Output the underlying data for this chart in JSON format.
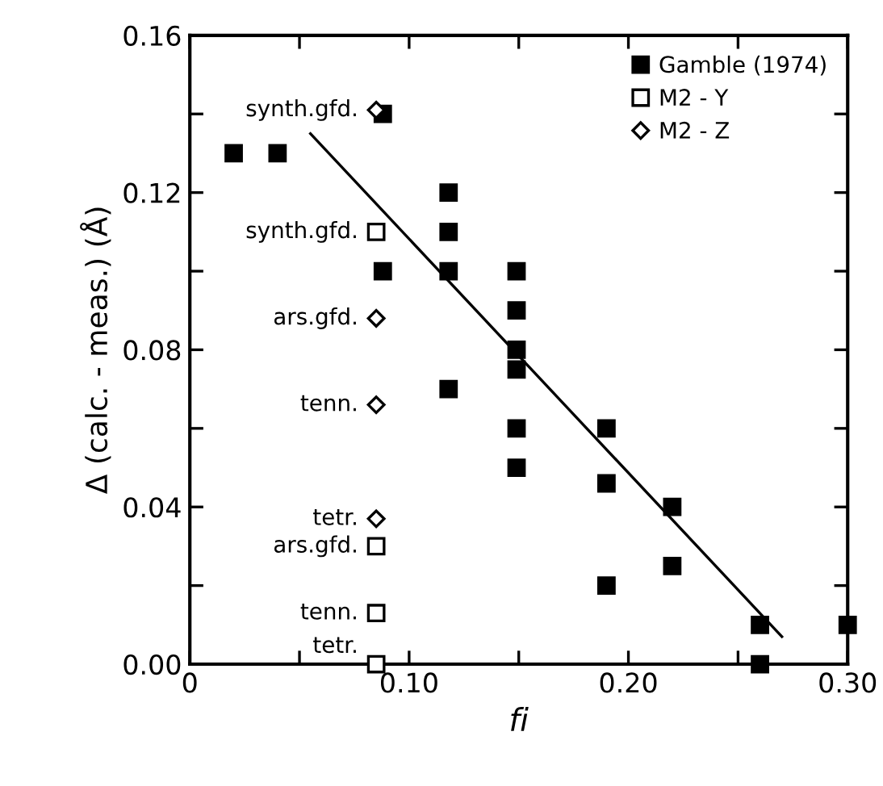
{
  "chart_data": {
    "type": "scatter",
    "xlabel": "fi",
    "ylabel": "Δ (calc. - meas.) (Å)",
    "xlim": [
      0,
      0.3
    ],
    "ylim": [
      0,
      0.16
    ],
    "xticks": [
      {
        "value": 0,
        "label": "0"
      },
      {
        "value": 0.05,
        "label": null
      },
      {
        "value": 0.1,
        "label": "0.10"
      },
      {
        "value": 0.15,
        "label": null
      },
      {
        "value": 0.2,
        "label": "0.20"
      },
      {
        "value": 0.25,
        "label": null
      },
      {
        "value": 0.3,
        "label": "0.30"
      }
    ],
    "yticks": [
      {
        "value": 0,
        "label": "0.00"
      },
      {
        "value": 0.02,
        "label": null
      },
      {
        "value": 0.04,
        "label": "0.04"
      },
      {
        "value": 0.06,
        "label": null
      },
      {
        "value": 0.08,
        "label": "0.08"
      },
      {
        "value": 0.1,
        "label": null
      },
      {
        "value": 0.12,
        "label": "0.12"
      },
      {
        "value": 0.14,
        "label": null
      },
      {
        "value": 0.16,
        "label": "0.16"
      }
    ],
    "grid": false,
    "legend": "top right",
    "series": [
      {
        "name": "Gamble (1974)",
        "color": "#000000",
        "marker": "square",
        "x": [
          0.02,
          0.04,
          0.088,
          0.088,
          0.118,
          0.118,
          0.118,
          0.118,
          0.149,
          0.149,
          0.149,
          0.149,
          0.149,
          0.149,
          0.19,
          0.19,
          0.19,
          0.22,
          0.22,
          0.26,
          0.26,
          0.3
        ],
        "values": [
          0.13,
          0.13,
          0.14,
          0.1,
          0.12,
          0.11,
          0.1,
          0.07,
          0.1,
          0.09,
          0.08,
          0.075,
          0.06,
          0.05,
          0.06,
          0.046,
          0.02,
          0.04,
          0.025,
          0.01,
          0.0,
          0.01
        ]
      },
      {
        "name": "M2 - Y",
        "color": "#000000",
        "marker": "square",
        "x": [
          0.085,
          0.085,
          0.085,
          0.085
        ],
        "values": [
          0.11,
          0.03,
          0.013,
          0.0
        ],
        "value_labels": [
          "synth.gfd.",
          "ars.gfd.",
          "tenn.",
          "tetr."
        ]
      },
      {
        "name": "M2 - Z",
        "color": "#000000",
        "marker": "diamond",
        "x": [
          0.085,
          0.085,
          0.085,
          0.085
        ],
        "values": [
          0.141,
          0.088,
          0.066,
          0.037
        ],
        "value_labels": [
          "synth.gfd.",
          "ars.gfd.",
          "tenn.",
          "tetr."
        ]
      },
      {
        "type": "line",
        "color": "#000000",
        "marker": "none",
        "x": [
          0.055,
          0.27
        ],
        "values": [
          0.135,
          0.007
        ]
      }
    ]
  }
}
